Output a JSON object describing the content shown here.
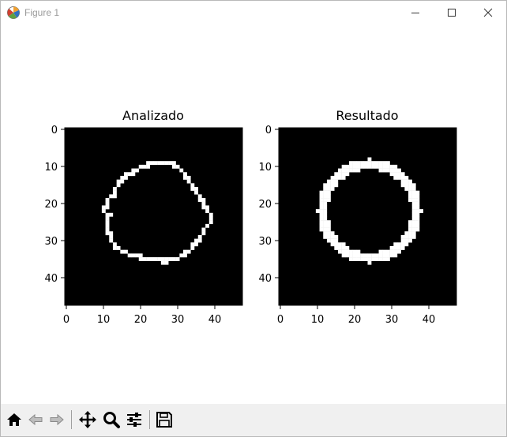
{
  "window": {
    "title": "Figure 1"
  },
  "figure": {
    "plots": [
      {
        "title": "Analizado",
        "x_ticks": [
          "0",
          "10",
          "20",
          "30",
          "40"
        ],
        "y_ticks": [
          "0",
          "10",
          "20",
          "30",
          "40"
        ],
        "image": {
          "rows": 48,
          "cols": 48,
          "background": "#000000",
          "foreground": "#ffffff",
          "content": "irregular-ring"
        }
      },
      {
        "title": "Resultado",
        "x_ticks": [
          "0",
          "10",
          "20",
          "30",
          "40"
        ],
        "y_ticks": [
          "0",
          "10",
          "20",
          "30",
          "40"
        ],
        "image": {
          "rows": 48,
          "cols": 48,
          "background": "#000000",
          "foreground": "#ffffff",
          "content": "ring"
        }
      }
    ]
  },
  "toolbar": {
    "tools": [
      "home-icon",
      "back-icon",
      "forward-icon",
      "pan-icon",
      "zoom-icon",
      "configure-subplots-icon",
      "save-icon"
    ]
  }
}
